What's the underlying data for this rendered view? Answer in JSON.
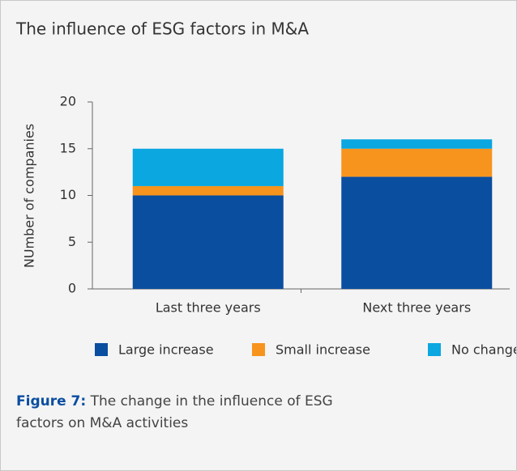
{
  "chart_data": {
    "type": "stacked_bar",
    "title": "The influence of ESG factors in M&A",
    "y_label": "NUmber of companies",
    "caption_label": "Figure 7:",
    "caption": "The change in the influence of ESG factors on M&A activities",
    "categories": [
      "Last three years",
      "Next three years"
    ],
    "series": [
      {
        "name": "Large increase",
        "color": "#0a4ea0",
        "values": [
          10,
          12
        ]
      },
      {
        "name": "Small increase",
        "color": "#f7941d",
        "values": [
          1,
          3
        ]
      },
      {
        "name": "No change",
        "color": "#0aa7e0",
        "values": [
          4,
          1
        ]
      }
    ],
    "ylim": [
      0,
      20
    ],
    "yticks": [
      0,
      5,
      10,
      15,
      20
    ],
    "legend": "bottom"
  }
}
